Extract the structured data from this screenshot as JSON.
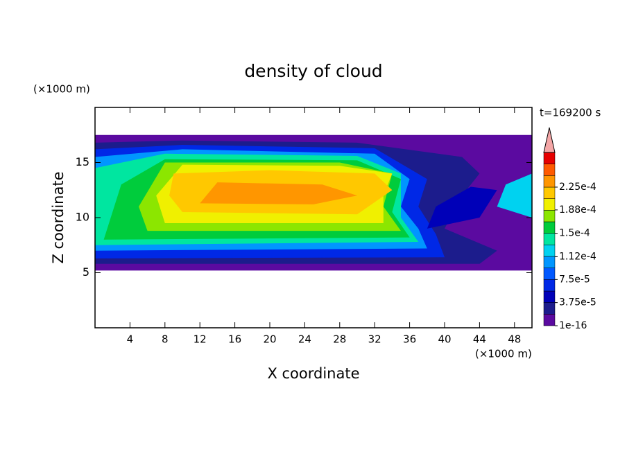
{
  "chart_data": {
    "type": "contour",
    "title": "density of cloud",
    "xlabel": "X coordinate",
    "ylabel": "Z coordinate",
    "x_unit": "(×1000 m)",
    "y_unit": "(×1000 m)",
    "time_label": "t=169200 s",
    "xlim": [
      0,
      50
    ],
    "xticks": [
      4,
      8,
      12,
      16,
      20,
      24,
      28,
      32,
      36,
      40,
      44,
      48
    ],
    "ylim": [
      0,
      20
    ],
    "yticks": [
      5,
      10,
      15
    ],
    "colorbar_ticks": [
      {
        "value": 1e-16,
        "label": "1e-16"
      },
      {
        "value": 3.75e-05,
        "label": "3.75e-5"
      },
      {
        "value": 7.5e-05,
        "label": "7.5e-5"
      },
      {
        "value": 0.000112,
        "label": "1.12e-4"
      },
      {
        "value": 0.00015,
        "label": "1.5e-4"
      },
      {
        "value": 0.000188,
        "label": "1.88e-4"
      },
      {
        "value": 0.000225,
        "label": "2.25e-4"
      }
    ],
    "colors": [
      "#5b0aa0",
      "#1c1c8c",
      "#0000b8",
      "#0028e6",
      "#0058ff",
      "#0096ff",
      "#00d2f0",
      "#00e6a0",
      "#00cc3c",
      "#8ce600",
      "#f0f000",
      "#ffc800",
      "#ff9600",
      "#ff5a00",
      "#e60000"
    ],
    "extend_color": "#f4a6a6",
    "grid": false
  }
}
